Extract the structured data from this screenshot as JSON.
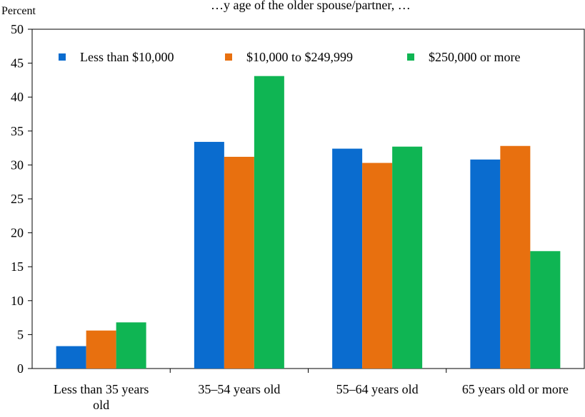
{
  "chart_data": {
    "type": "bar",
    "title": "…y age of the older spouse/partner, …",
    "ylabel": "Percent",
    "xlabel": "",
    "ylim": [
      0,
      50
    ],
    "yticks": [
      0,
      5,
      10,
      15,
      20,
      25,
      30,
      35,
      40,
      45,
      50
    ],
    "grid": false,
    "legend_position": "top",
    "categories": [
      [
        "Less than 35 years",
        "old"
      ],
      [
        "35–54 years old"
      ],
      [
        "55–64 years old"
      ],
      [
        "65 years old or more"
      ]
    ],
    "series": [
      {
        "name": "Less than $10,000",
        "color": "#0a6ccf",
        "values": [
          3.3,
          33.4,
          32.4,
          30.8
        ]
      },
      {
        "name": "$10,000 to $249,999",
        "color": "#e8700f",
        "values": [
          5.6,
          31.2,
          30.3,
          32.8
        ]
      },
      {
        "name": "$250,000 or more",
        "color": "#0fb553",
        "values": [
          6.8,
          43.1,
          32.7,
          17.3
        ]
      }
    ]
  }
}
